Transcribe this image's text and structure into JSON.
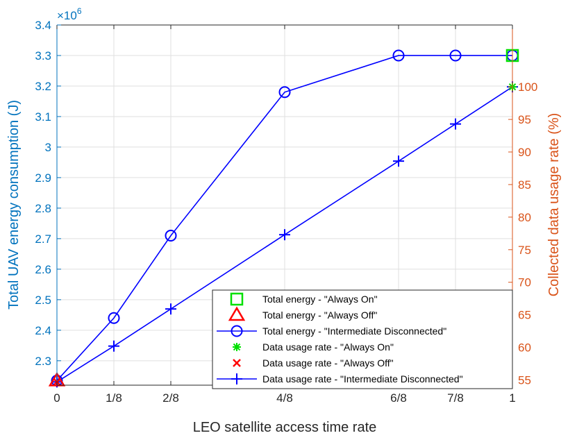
{
  "chart_data": {
    "type": "line",
    "xlabel": "LEO satellite access time rate",
    "ylabel_left": "Total UAV energy consumption (J)",
    "ylabel_right": "Collected data usage rate (%)",
    "left_axis_exponent": "×10",
    "left_axis_exponent_power": "6",
    "x_ticks": [
      {
        "value": 0,
        "label": "0"
      },
      {
        "value": 0.125,
        "label": "1/8"
      },
      {
        "value": 0.25,
        "label": "2/8"
      },
      {
        "value": 0.5,
        "label": "4/8"
      },
      {
        "value": 0.75,
        "label": "6/8"
      },
      {
        "value": 0.875,
        "label": "7/8"
      },
      {
        "value": 1,
        "label": "1"
      }
    ],
    "x_range": [
      0,
      1
    ],
    "left_ylim": [
      2.22,
      3.4
    ],
    "left_yticks": [
      {
        "value": 2.3,
        "label": "2.3"
      },
      {
        "value": 2.4,
        "label": "2.4"
      },
      {
        "value": 2.5,
        "label": "2.5"
      },
      {
        "value": 2.6,
        "label": "2.6"
      },
      {
        "value": 2.7,
        "label": "2.7"
      },
      {
        "value": 2.8,
        "label": "2.8"
      },
      {
        "value": 2.9,
        "label": "2.9"
      },
      {
        "value": 3.0,
        "label": "3"
      },
      {
        "value": 3.1,
        "label": "3.1"
      },
      {
        "value": 3.2,
        "label": "3.2"
      },
      {
        "value": 3.3,
        "label": "3.3"
      },
      {
        "value": 3.4,
        "label": "3.4"
      }
    ],
    "right_ylim": [
      54.2,
      109.5
    ],
    "right_yticks": [
      {
        "value": 55,
        "label": "55"
      },
      {
        "value": 60,
        "label": "60"
      },
      {
        "value": 65,
        "label": "65"
      },
      {
        "value": 70,
        "label": "70"
      },
      {
        "value": 75,
        "label": "75"
      },
      {
        "value": 80,
        "label": "80"
      },
      {
        "value": 85,
        "label": "85"
      },
      {
        "value": 90,
        "label": "90"
      },
      {
        "value": 95,
        "label": "95"
      },
      {
        "value": 100,
        "label": "100"
      }
    ],
    "grid": true,
    "legend_position": "bottom-right",
    "series": [
      {
        "name": "Total energy - \"Always On\"",
        "axis": "left",
        "marker": "square",
        "color": "#00E000",
        "line": false,
        "x": [
          1
        ],
        "y": [
          3.3
        ]
      },
      {
        "name": "Total energy - \"Always Off\"",
        "axis": "left",
        "marker": "triangle",
        "color": "#FF0000",
        "line": false,
        "x": [
          0
        ],
        "y": [
          2.235
        ]
      },
      {
        "name": "Total energy - \"Intermediate Disconnected\"",
        "axis": "left",
        "marker": "circle",
        "color": "#0000FF",
        "line": true,
        "x": [
          0,
          0.125,
          0.25,
          0.5,
          0.75,
          0.875,
          1
        ],
        "y": [
          2.235,
          2.44,
          2.71,
          3.18,
          3.3,
          3.3,
          3.3
        ]
      },
      {
        "name": "Data usage rate - \"Always On\"",
        "axis": "right",
        "marker": "asterisk",
        "color": "#00E000",
        "line": false,
        "x": [
          1
        ],
        "y": [
          100
        ]
      },
      {
        "name": "Data usage rate - \"Always Off\"",
        "axis": "right",
        "marker": "x",
        "color": "#FF0000",
        "line": false,
        "x": [
          0
        ],
        "y": [
          54.7
        ]
      },
      {
        "name": "Data usage rate - \"Intermediate Disconnected\"",
        "axis": "right",
        "marker": "plus",
        "color": "#0000FF",
        "line": true,
        "x": [
          0,
          0.125,
          0.25,
          0.5,
          0.75,
          0.875,
          1
        ],
        "y": [
          54.7,
          60.2,
          65.9,
          77.3,
          88.6,
          94.3,
          100
        ]
      }
    ],
    "colors": {
      "left_axis": "#0072BD",
      "right_axis": "#D95319",
      "x_axis": "#262626",
      "grid": "#DFDFDF"
    }
  }
}
